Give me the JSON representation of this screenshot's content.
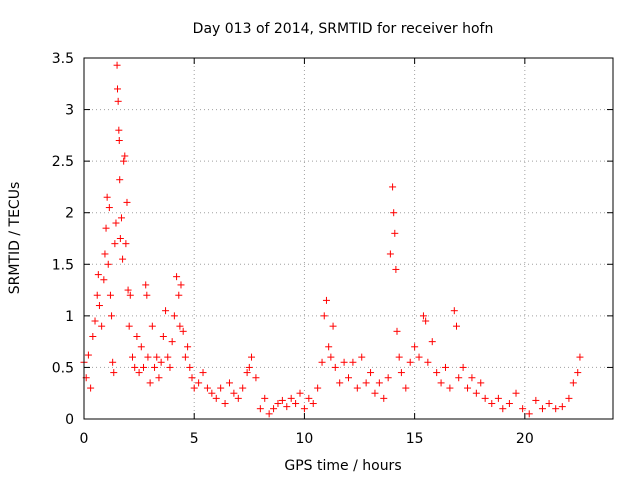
{
  "chart_data": {
    "type": "scatter",
    "title": "Day 013 of 2014, SRMTID for receiver hofn",
    "xlabel": "GPS time / hours",
    "ylabel": "SRMTID / TECUs",
    "xlim": [
      0,
      24
    ],
    "ylim": [
      0,
      3.5
    ],
    "xticks": [
      0,
      5,
      10,
      15,
      20
    ],
    "xtick_labels": [
      "0",
      "5",
      "10",
      "15",
      "20"
    ],
    "yticks": [
      0,
      0.5,
      1,
      1.5,
      2,
      2.5,
      3,
      3.5
    ],
    "ytick_labels": [
      "0",
      "0.5",
      "1",
      "1.5",
      "2",
      "2.5",
      "3",
      "3.5"
    ],
    "grid": true,
    "marker": "+",
    "color": "#ff0000",
    "series": [
      {
        "name": "SRMTID",
        "points": [
          [
            0.0,
            0.55
          ],
          [
            0.1,
            0.4
          ],
          [
            0.2,
            0.62
          ],
          [
            0.3,
            0.3
          ],
          [
            0.4,
            0.8
          ],
          [
            0.5,
            0.95
          ],
          [
            0.6,
            1.2
          ],
          [
            0.65,
            1.4
          ],
          [
            0.7,
            1.1
          ],
          [
            0.8,
            0.9
          ],
          [
            0.9,
            1.35
          ],
          [
            0.95,
            1.6
          ],
          [
            1.0,
            1.85
          ],
          [
            1.05,
            2.15
          ],
          [
            1.1,
            1.5
          ],
          [
            1.15,
            2.05
          ],
          [
            1.2,
            1.2
          ],
          [
            1.25,
            1.0
          ],
          [
            1.3,
            0.55
          ],
          [
            1.35,
            0.45
          ],
          [
            1.4,
            1.7
          ],
          [
            1.45,
            1.9
          ],
          [
            1.5,
            3.43
          ],
          [
            1.52,
            3.2
          ],
          [
            1.55,
            3.08
          ],
          [
            1.58,
            2.8
          ],
          [
            1.6,
            2.7
          ],
          [
            1.62,
            2.32
          ],
          [
            1.65,
            1.75
          ],
          [
            1.7,
            1.95
          ],
          [
            1.75,
            1.55
          ],
          [
            1.8,
            2.5
          ],
          [
            1.85,
            2.55
          ],
          [
            1.9,
            1.7
          ],
          [
            1.95,
            2.1
          ],
          [
            2.0,
            1.25
          ],
          [
            2.05,
            0.9
          ],
          [
            2.1,
            1.2
          ],
          [
            2.2,
            0.6
          ],
          [
            2.3,
            0.5
          ],
          [
            2.4,
            0.8
          ],
          [
            2.5,
            0.45
          ],
          [
            2.6,
            0.7
          ],
          [
            2.7,
            0.5
          ],
          [
            2.8,
            1.3
          ],
          [
            2.85,
            1.2
          ],
          [
            2.9,
            0.6
          ],
          [
            3.0,
            0.35
          ],
          [
            3.1,
            0.9
          ],
          [
            3.2,
            0.5
          ],
          [
            3.3,
            0.6
          ],
          [
            3.4,
            0.4
          ],
          [
            3.5,
            0.55
          ],
          [
            3.6,
            0.8
          ],
          [
            3.7,
            1.05
          ],
          [
            3.8,
            0.6
          ],
          [
            3.9,
            0.5
          ],
          [
            4.0,
            0.75
          ],
          [
            4.1,
            1.0
          ],
          [
            4.2,
            1.38
          ],
          [
            4.3,
            1.2
          ],
          [
            4.35,
            0.9
          ],
          [
            4.4,
            1.3
          ],
          [
            4.5,
            0.85
          ],
          [
            4.6,
            0.6
          ],
          [
            4.7,
            0.7
          ],
          [
            4.8,
            0.5
          ],
          [
            4.9,
            0.4
          ],
          [
            5.0,
            0.3
          ],
          [
            5.2,
            0.35
          ],
          [
            5.4,
            0.45
          ],
          [
            5.6,
            0.3
          ],
          [
            5.8,
            0.25
          ],
          [
            6.0,
            0.2
          ],
          [
            6.2,
            0.3
          ],
          [
            6.4,
            0.15
          ],
          [
            6.6,
            0.35
          ],
          [
            6.8,
            0.25
          ],
          [
            7.0,
            0.2
          ],
          [
            7.2,
            0.3
          ],
          [
            7.4,
            0.45
          ],
          [
            7.5,
            0.5
          ],
          [
            7.6,
            0.6
          ],
          [
            7.8,
            0.4
          ],
          [
            8.0,
            0.1
          ],
          [
            8.2,
            0.2
          ],
          [
            8.4,
            0.05
          ],
          [
            8.6,
            0.1
          ],
          [
            8.8,
            0.15
          ],
          [
            9.0,
            0.18
          ],
          [
            9.2,
            0.12
          ],
          [
            9.4,
            0.2
          ],
          [
            9.6,
            0.15
          ],
          [
            9.8,
            0.25
          ],
          [
            10.0,
            0.1
          ],
          [
            10.2,
            0.2
          ],
          [
            10.4,
            0.15
          ],
          [
            10.6,
            0.3
          ],
          [
            10.8,
            0.55
          ],
          [
            10.9,
            1.0
          ],
          [
            11.0,
            1.15
          ],
          [
            11.1,
            0.7
          ],
          [
            11.2,
            0.6
          ],
          [
            11.3,
            0.9
          ],
          [
            11.4,
            0.5
          ],
          [
            11.6,
            0.35
          ],
          [
            11.8,
            0.55
          ],
          [
            12.0,
            0.4
          ],
          [
            12.2,
            0.55
          ],
          [
            12.4,
            0.3
          ],
          [
            12.6,
            0.6
          ],
          [
            12.8,
            0.35
          ],
          [
            13.0,
            0.45
          ],
          [
            13.2,
            0.25
          ],
          [
            13.4,
            0.35
          ],
          [
            13.6,
            0.2
          ],
          [
            13.8,
            0.4
          ],
          [
            13.9,
            1.6
          ],
          [
            14.0,
            2.25
          ],
          [
            14.05,
            2.0
          ],
          [
            14.1,
            1.8
          ],
          [
            14.15,
            1.45
          ],
          [
            14.2,
            0.85
          ],
          [
            14.3,
            0.6
          ],
          [
            14.4,
            0.45
          ],
          [
            14.6,
            0.3
          ],
          [
            14.8,
            0.55
          ],
          [
            15.0,
            0.7
          ],
          [
            15.2,
            0.6
          ],
          [
            15.4,
            1.0
          ],
          [
            15.5,
            0.95
          ],
          [
            15.6,
            0.55
          ],
          [
            15.8,
            0.75
          ],
          [
            16.0,
            0.45
          ],
          [
            16.2,
            0.35
          ],
          [
            16.4,
            0.5
          ],
          [
            16.6,
            0.3
          ],
          [
            16.8,
            1.05
          ],
          [
            16.9,
            0.9
          ],
          [
            17.0,
            0.4
          ],
          [
            17.2,
            0.5
          ],
          [
            17.4,
            0.3
          ],
          [
            17.6,
            0.4
          ],
          [
            17.8,
            0.25
          ],
          [
            18.0,
            0.35
          ],
          [
            18.2,
            0.2
          ],
          [
            18.5,
            0.15
          ],
          [
            18.8,
            0.2
          ],
          [
            19.0,
            0.1
          ],
          [
            19.3,
            0.15
          ],
          [
            19.6,
            0.25
          ],
          [
            19.9,
            0.1
          ],
          [
            20.2,
            0.05
          ],
          [
            20.5,
            0.18
          ],
          [
            20.8,
            0.1
          ],
          [
            21.1,
            0.15
          ],
          [
            21.4,
            0.1
          ],
          [
            21.7,
            0.12
          ],
          [
            22.0,
            0.2
          ],
          [
            22.2,
            0.35
          ],
          [
            22.4,
            0.45
          ],
          [
            22.5,
            0.6
          ]
        ]
      }
    ]
  }
}
